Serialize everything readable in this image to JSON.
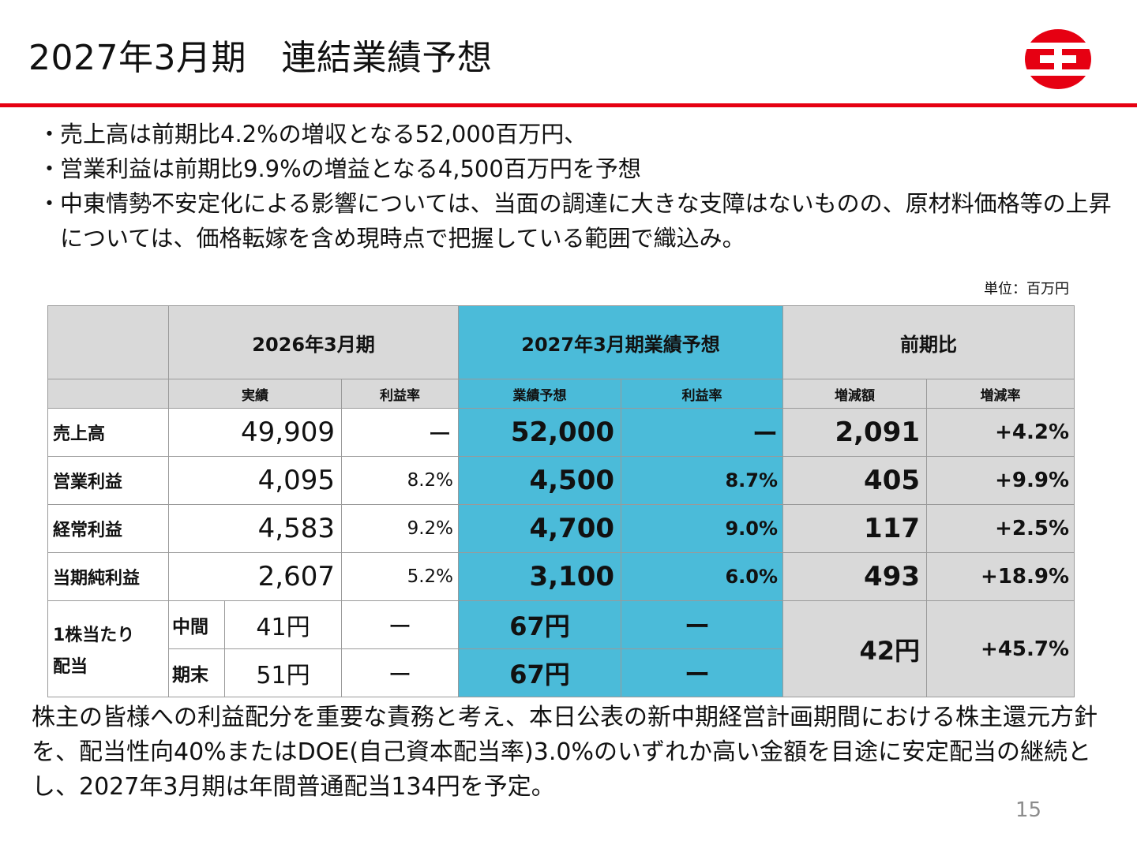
{
  "header": {
    "title": "2027年3月期　連結業績予想",
    "brand_color": "#e60012"
  },
  "bullets": [
    "売上高は前期比4.2%の増収となる52,000百万円、",
    "営業利益は前期比9.9%の増益となる4,500百万円を予想",
    "中東情勢不安定化による影響については、当面の調達に大きな支障はないものの、原材料価格等の上昇については、価格転嫁を含め現時点で把握している範囲で織込み。"
  ],
  "bullet_mark": "・",
  "unit_label": "単位：百万円",
  "table": {
    "groups": {
      "prev": "2026年3月期",
      "forecast": "2027年3月期業績予想",
      "compare": "前期比"
    },
    "subheaders": {
      "actual": "実績",
      "margin": "利益率",
      "forecast": "業績予想",
      "forecast_margin": "利益率",
      "change": "増減額",
      "change_rate": "増減率"
    },
    "rows": [
      {
        "label": "売上高",
        "actual": "49,909",
        "margin": "ー",
        "forecast": "52,000",
        "forecast_margin": "ー",
        "change": "2,091",
        "rate": "+4.2%"
      },
      {
        "label": "営業利益",
        "actual": "4,095",
        "margin": "8.2%",
        "forecast": "4,500",
        "forecast_margin": "8.7%",
        "change": "405",
        "rate": "+9.9%"
      },
      {
        "label": "経常利益",
        "actual": "4,583",
        "margin": "9.2%",
        "forecast": "4,700",
        "forecast_margin": "9.0%",
        "change": "117",
        "rate": "+2.5%"
      },
      {
        "label": "当期純利益",
        "actual": "2,607",
        "margin": "5.2%",
        "forecast": "3,100",
        "forecast_margin": "6.0%",
        "change": "493",
        "rate": "+18.9%"
      }
    ],
    "dividend": {
      "label_line1": "1株当たり",
      "label_line2": "配当",
      "interim": {
        "label": "中間",
        "actual": "41円",
        "margin": "ー",
        "forecast": "67円",
        "forecast_margin": "ー"
      },
      "yearend": {
        "label": "期末",
        "actual": "51円",
        "margin": "ー",
        "forecast": "67円",
        "forecast_margin": "ー"
      },
      "change": "42円",
      "rate": "+45.7%"
    },
    "colors": {
      "gray": "#d9d9d9",
      "blue": "#4bbbd9"
    }
  },
  "paragraph": "株主の皆様への利益配分を重要な責務と考え、本日公表の新中期経営計画期間における株主還元方針を、配当性向40%またはDOE(自己資本配当率)3.0%のいずれか高い金額を目途に安定配当の継続とし、2027年3月期は年間普通配当134円を予定。",
  "page_number": "15"
}
